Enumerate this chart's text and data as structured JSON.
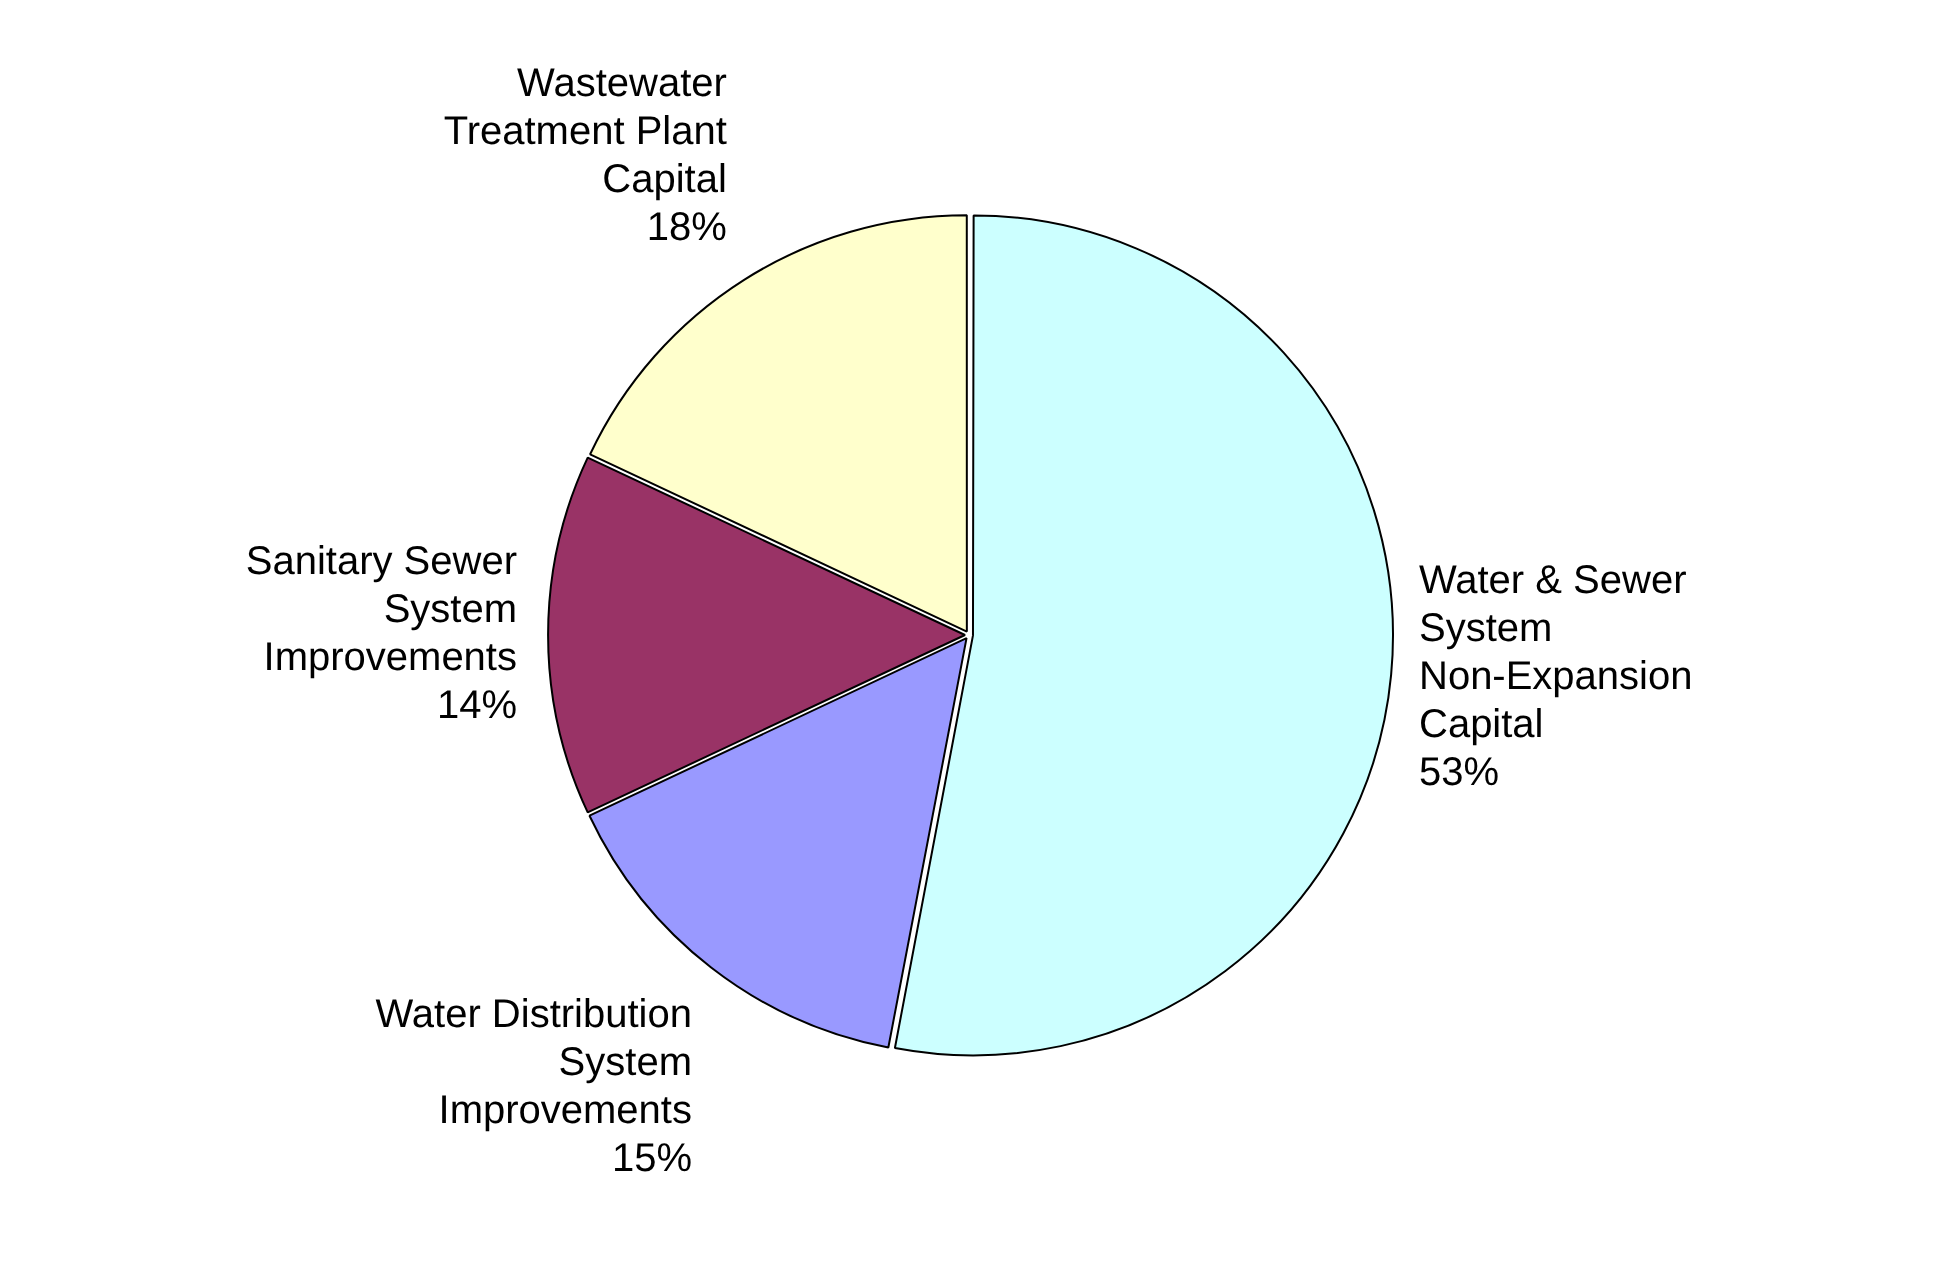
{
  "chart_data": {
    "type": "pie",
    "categories": [
      "Water & Sewer System Non-Expansion Capital",
      "Water Distribution System Improvements",
      "Sanitary Sewer System Improvements",
      "Wastewater Treatment Plant Capital"
    ],
    "values": [
      53,
      15,
      14,
      18
    ],
    "value_labels": [
      "53%",
      "15%",
      "14%",
      "18%"
    ],
    "colors": [
      "#ccffff",
      "#9999ff",
      "#993366",
      "#ffffcc"
    ],
    "legend": false
  }
}
